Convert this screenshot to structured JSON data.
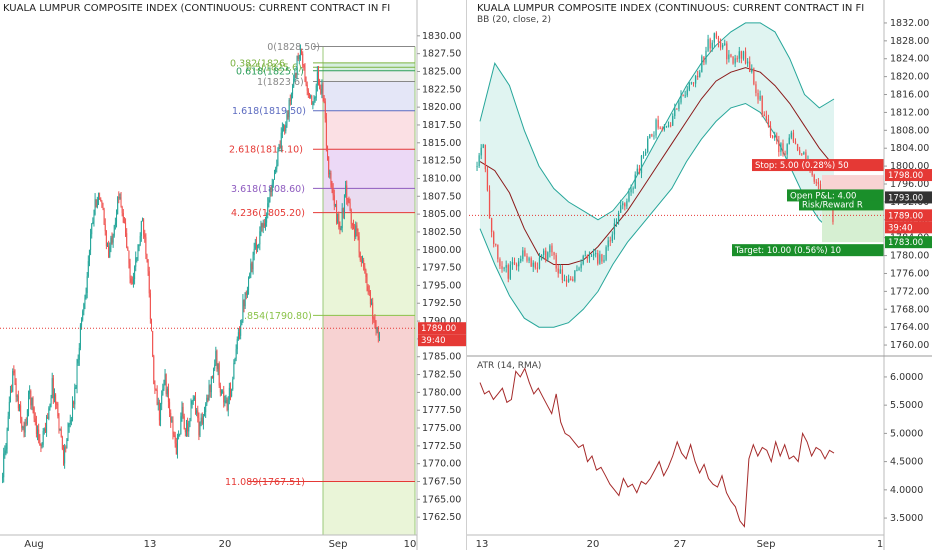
{
  "left_panel": {
    "title": "KUALA LUMPUR COMPOSITE INDEX (CONTINUOUS: CURRENT CONTRACT IN FI",
    "price_label": "1789.00",
    "countdown_label": "39:40",
    "x_labels": [
      "Aug",
      "13",
      "20",
      "Sep",
      "10"
    ]
  },
  "right_top_panel": {
    "title": "KUALA LUMPUR COMPOSITE INDEX (CONTINUOUS: CURRENT CONTRACT IN FI",
    "indicator_label": "BB (20, close, 2)",
    "stop_label": "Stop: 5.00 (0.28%) 50",
    "stop_price": "1798.00",
    "last_price": "1793.00",
    "pnl_label": "Open P&L: 4.00",
    "rr_label": "Risk/Reward R",
    "current_price": "1789.00",
    "countdown_label": "39:40",
    "target_label": "Target: 10.00 (0.56%) 10",
    "target_price": "1783.00"
  },
  "right_bottom_panel": {
    "indicator_label": "ATR (14, RMA)"
  },
  "right_x_labels": [
    "13",
    "20",
    "27",
    "Sep",
    "1"
  ],
  "colors": {
    "up": "#26a69a",
    "down": "#ef5350",
    "fib_pink": "#f4cccc",
    "fib_purple": "#e6d0f5",
    "fib_green": "#e8f4d4",
    "bb_fill": "#e0f4f1",
    "bb_band": "#26a69a",
    "bb_mid": "#8b1a1a",
    "atr_line": "#a52a2a"
  },
  "chart_data": [
    {
      "type": "candlestick",
      "title": "KUALA LUMPUR COMPOSITE INDEX (CONTINUOUS: CURRENT CONTRACT IN FI",
      "ylim": [
        1760,
        1832.5
      ],
      "y_ticks": [
        "1830.00",
        "1827.50",
        "1825.00",
        "1822.50",
        "1820.00",
        "1817.50",
        "1815.00",
        "1812.50",
        "1810.00",
        "1807.50",
        "1805.00",
        "1802.50",
        "1800.00",
        "1797.50",
        "1795.00",
        "1792.50",
        "1790.00",
        "1787.50",
        "1785.00",
        "1782.50",
        "1780.00",
        "1777.50",
        "1775.00",
        "1772.50",
        "1770.00",
        "1767.50",
        "1765.00",
        "1762.50"
      ],
      "y_tick_values": [
        1830,
        1827.5,
        1825,
        1822.5,
        1820,
        1817.5,
        1815,
        1812.5,
        1810,
        1807.5,
        1805,
        1802.5,
        1800,
        1797.5,
        1795,
        1792.5,
        1790,
        1787.5,
        1785,
        1782.5,
        1780,
        1777.5,
        1775,
        1772.5,
        1770,
        1767.5,
        1765,
        1762.5
      ],
      "x_ticks": [
        "Aug",
        "13",
        "20",
        "Sep",
        "10"
      ],
      "close_path": [
        1768,
        1774,
        1783,
        1778,
        1774,
        1780,
        1776,
        1772,
        1776,
        1781,
        1777,
        1771,
        1775,
        1780,
        1789,
        1795,
        1803,
        1808,
        1805,
        1799,
        1804,
        1808,
        1802,
        1795,
        1799,
        1804,
        1798,
        1781,
        1777,
        1782,
        1776,
        1772,
        1777,
        1774,
        1780,
        1775,
        1777,
        1781,
        1785,
        1780,
        1778,
        1782,
        1788,
        1793,
        1797,
        1800,
        1803,
        1805,
        1810,
        1813,
        1817,
        1820,
        1825,
        1828,
        1823,
        1820,
        1824,
        1822,
        1811,
        1806,
        1803,
        1808,
        1804,
        1802,
        1798,
        1794,
        1790,
        1788
      ],
      "fibonacci": [
        {
          "label": "0(1828.50)",
          "value": 1828.5
        },
        {
          "label": "0.382(1826",
          "value": 1826.2
        },
        {
          "label": "0.5(1825.6)",
          "value": 1825.6
        },
        {
          "label": "0.618(1825.1)",
          "value": 1825.1
        },
        {
          "label": "1(1823.6)",
          "value": 1823.6
        },
        {
          "label": "1.618(1819.50)",
          "value": 1819.5
        },
        {
          "label": "2.618(1814.10)",
          "value": 1814.1
        },
        {
          "label": "3.618(1808.60)",
          "value": 1808.6
        },
        {
          "label": "4.236(1805.20)",
          "value": 1805.2
        },
        {
          "label": ".854(1790.80)",
          "value": 1790.8
        },
        {
          "label": "11.089(1767.51)",
          "value": 1767.51
        }
      ],
      "current_price": 1789
    },
    {
      "type": "candlestick",
      "title": "KUALA LUMPUR COMPOSITE INDEX (CONTINUOUS: CURRENT CONTRACT IN FI",
      "indicator": "BB (20, close, 2)",
      "ylim": [
        1758,
        1834
      ],
      "y_ticks": [
        "1832.00",
        "1828.00",
        "1824.00",
        "1820.00",
        "1816.00",
        "1812.00",
        "1808.00",
        "1804.00",
        "1800.00",
        "1796.00",
        "1792.00",
        "1788.00",
        "1784.00",
        "1780.00",
        "1776.00",
        "1772.00",
        "1768.00",
        "1764.00",
        "1760.00"
      ],
      "y_tick_values": [
        1832,
        1828,
        1824,
        1820,
        1816,
        1812,
        1808,
        1804,
        1800,
        1796,
        1792,
        1788,
        1784,
        1780,
        1776,
        1772,
        1768,
        1764,
        1760
      ],
      "x_ticks": [
        "13",
        "20",
        "27",
        "Sep",
        "1"
      ],
      "close_path": [
        1800,
        1806,
        1784,
        1778,
        1776,
        1779,
        1781,
        1778,
        1779,
        1782,
        1777,
        1775,
        1776,
        1779,
        1781,
        1779,
        1782,
        1788,
        1792,
        1796,
        1801,
        1806,
        1810,
        1808,
        1812,
        1816,
        1819,
        1822,
        1827,
        1829,
        1826,
        1823,
        1825,
        1822,
        1816,
        1810,
        1806,
        1803,
        1807,
        1804,
        1800,
        1797,
        1793,
        1789
      ],
      "upper_path": [
        1810,
        1823,
        1818,
        1808,
        1800,
        1795,
        1792,
        1790,
        1788,
        1790,
        1794,
        1800,
        1806,
        1812,
        1818,
        1823,
        1827,
        1830,
        1832,
        1832,
        1830,
        1824,
        1816,
        1813,
        1815
      ],
      "middle_path": [
        1801,
        1799,
        1794,
        1786,
        1780,
        1778,
        1778,
        1779,
        1782,
        1786,
        1790,
        1795,
        1800,
        1805,
        1810,
        1815,
        1819,
        1821,
        1822,
        1821,
        1818,
        1814,
        1809,
        1804,
        1800
      ],
      "lower_path": [
        1786,
        1778,
        1771,
        1766,
        1764,
        1764,
        1765,
        1768,
        1772,
        1778,
        1783,
        1787,
        1791,
        1795,
        1801,
        1806,
        1810,
        1813,
        1814,
        1812,
        1807,
        1800,
        1793,
        1788,
        1785
      ],
      "stop": {
        "label": "Stop: 5.00 (0.28%) 50",
        "price": 1798
      },
      "entry": {
        "price": 1793
      },
      "target": {
        "label": "Target: 10.00 (0.56%) 10",
        "price": 1783
      },
      "current_price": 1789
    },
    {
      "type": "line",
      "indicator": "ATR (14, RMA)",
      "ylim": [
        3.2,
        6.3
      ],
      "y_ticks": [
        "6.0000",
        "5.5000",
        "5.0000",
        "4.5000",
        "4.0000",
        "3.5000"
      ],
      "y_tick_values": [
        6.0,
        5.5,
        5.0,
        4.5,
        4.0,
        3.5
      ],
      "x_ticks": [
        "13",
        "20",
        "27",
        "Sep",
        "1"
      ],
      "values": [
        5.9,
        5.7,
        5.75,
        5.6,
        5.7,
        5.8,
        5.55,
        5.6,
        6.1,
        6.0,
        6.15,
        5.9,
        5.7,
        5.8,
        5.65,
        5.5,
        5.35,
        5.7,
        5.2,
        5.0,
        4.95,
        4.85,
        4.75,
        4.8,
        4.5,
        4.6,
        4.35,
        4.4,
        4.25,
        4.1,
        4.0,
        3.9,
        4.2,
        4.05,
        4.1,
        3.95,
        4.15,
        4.1,
        4.2,
        4.35,
        4.5,
        4.25,
        4.4,
        4.6,
        4.85,
        4.65,
        4.55,
        4.8,
        4.5,
        4.3,
        4.45,
        4.2,
        4.1,
        4.05,
        4.25,
        3.95,
        3.8,
        3.7,
        3.45,
        3.35,
        4.55,
        4.8,
        4.6,
        4.75,
        4.7,
        4.5,
        4.85,
        4.6,
        4.8,
        4.55,
        4.6,
        4.5,
        5.0,
        4.85,
        4.6,
        4.75,
        4.7,
        4.55,
        4.7,
        4.65
      ]
    }
  ]
}
